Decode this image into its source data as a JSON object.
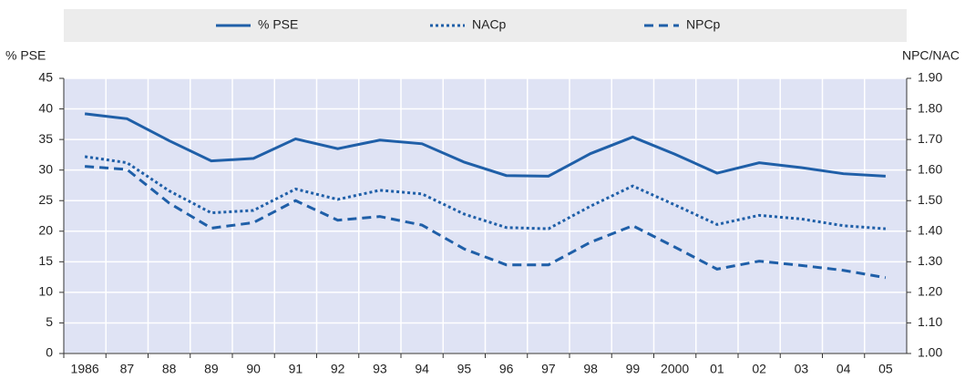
{
  "chart_data": {
    "type": "line",
    "categories": [
      "1986",
      "87",
      "88",
      "89",
      "90",
      "91",
      "92",
      "93",
      "94",
      "95",
      "96",
      "97",
      "98",
      "99",
      "2000",
      "01",
      "02",
      "03",
      "04",
      "05"
    ],
    "y_label": "% PSE",
    "y2_label": "NPC/NAC",
    "series": [
      {
        "name": "% PSE",
        "color": "#1f5fa8",
        "dash": "solid",
        "values": [
          39.2,
          38.4,
          34.8,
          31.5,
          31.9,
          35.1,
          33.5,
          34.9,
          34.3,
          31.3,
          29.1,
          29.0,
          32.7,
          35.4,
          32.6,
          29.5,
          31.2,
          30.4,
          29.4,
          29.0
        ]
      },
      {
        "name": "NACp",
        "color": "#1f5fa8",
        "dash": "dotted",
        "axis": "y2",
        "values": [
          1.644,
          1.624,
          1.532,
          1.46,
          1.468,
          1.538,
          1.504,
          1.534,
          1.522,
          1.456,
          1.412,
          1.408,
          1.482,
          1.548,
          1.486,
          1.422,
          1.452,
          1.44,
          1.418,
          1.408
        ]
      },
      {
        "name": "NPCp",
        "color": "#1f5fa8",
        "dash": "dashed",
        "axis": "y2",
        "values": [
          1.612,
          1.602,
          1.492,
          1.41,
          1.428,
          1.5,
          1.436,
          1.448,
          1.42,
          1.342,
          1.29,
          1.29,
          1.364,
          1.418,
          1.348,
          1.276,
          1.302,
          1.288,
          1.272,
          1.248
        ]
      }
    ],
    "ylim": [
      0,
      45
    ],
    "yticks": [
      0,
      5,
      10,
      15,
      20,
      25,
      30,
      35,
      40,
      45
    ],
    "y2lim": [
      1.0,
      1.9
    ],
    "y2ticks": [
      {
        "value": 1.0,
        "label": "1.00"
      },
      {
        "value": 1.1,
        "label": "1.10"
      },
      {
        "value": 1.2,
        "label": "1.20"
      },
      {
        "value": 1.3,
        "label": "1.30"
      },
      {
        "value": 1.4,
        "label": "1.40"
      },
      {
        "value": 1.5,
        "label": "1.50"
      },
      {
        "value": 1.6,
        "label": "1.60"
      },
      {
        "value": 1.7,
        "label": "1.70"
      },
      {
        "value": 1.8,
        "label": "1.80"
      },
      {
        "value": 1.9,
        "label": "1.90"
      }
    ],
    "grid": true,
    "legend": "top"
  }
}
